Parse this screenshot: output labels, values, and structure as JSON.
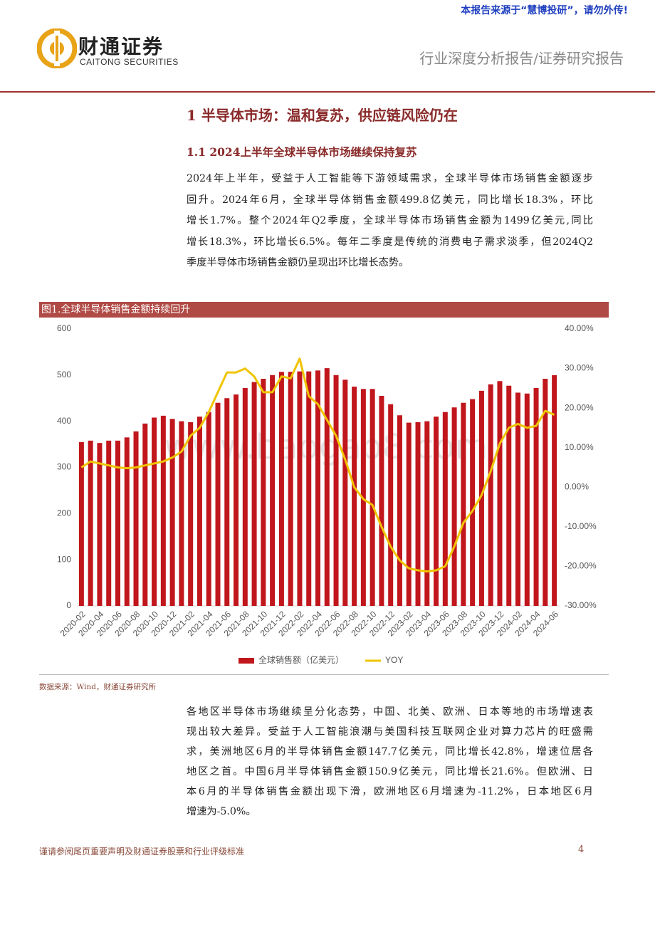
{
  "header": {
    "notice": "本报告来源于“慧博投研”，请勿外传!",
    "brand": "财通证券",
    "brand_en": "CAITONG SECURITIES",
    "report_type": "行业深度分析报告/证券研究报告"
  },
  "section_title": "1 半导体市场：温和复苏，供应链风险仍在",
  "subsection_title": "1.1 2024上半年全球半导体市场继续保持复苏",
  "paragraph_1": [
    "2024年上半年，受益于人工智能等下游领域需求，全球半导体市场销售金额逐步",
    "回升。2024年6月，全球半导体销售金额499.8亿美元，同比增长18.3%，环比",
    "增长1.7%。整个2024年Q2季度，全球半导体市场销售金额为1499亿美元,同比",
    "增长18.3%，环比增长6.5%。每年二季度是传统的消费电子需求淡季，但2024Q2",
    "季度半导体市场销售金额仍呈现出环比增长态势。"
  ],
  "figure_title": "图1.全球半导体销售金额持续回升",
  "watermark": "www.baogao8.com",
  "chart_data": {
    "type": "bar",
    "categories": [
      "2020-02",
      null,
      "2020-04",
      null,
      "2020-06",
      null,
      "2020-08",
      null,
      "2020-10",
      null,
      "2020-12",
      null,
      "2021-02",
      null,
      "2021-04",
      null,
      "2021-06",
      null,
      "2021-08",
      null,
      "2021-10",
      null,
      "2021-12",
      null,
      "2022-02",
      null,
      "2022-04",
      null,
      "2022-06",
      null,
      "2022-08",
      null,
      "2022-10",
      null,
      "2022-12",
      null,
      "2023-02",
      null,
      "2023-04",
      null,
      "2023-06",
      null,
      "2023-08",
      null,
      "2023-10",
      null,
      "2023-12",
      null,
      "2024-02",
      null,
      "2024-04",
      null,
      "2024-06"
    ],
    "series": [
      {
        "name": "全球销售额（亿美元）",
        "color": "#c0161c",
        "values": [
          355,
          358,
          353,
          358,
          358,
          365,
          378,
          395,
          408,
          412,
          405,
          400,
          398,
          410,
          420,
          440,
          450,
          458,
          472,
          485,
          492,
          500,
          507,
          507,
          508,
          508,
          510,
          515,
          500,
          490,
          475,
          470,
          470,
          455,
          437,
          413,
          397,
          398,
          400,
          410,
          420,
          430,
          440,
          448,
          466,
          480,
          487,
          477,
          462,
          460,
          472,
          492,
          499.8
        ]
      },
      {
        "name": "YOY",
        "type": "line",
        "axis": "y2",
        "color": "#f0c400",
        "values": [
          5,
          6.5,
          6,
          5.5,
          5,
          4.8,
          5,
          5.5,
          6,
          6.5,
          7.5,
          9,
          13,
          15,
          19,
          24,
          29,
          29,
          30,
          28,
          24,
          24,
          28,
          27.5,
          32.5,
          23,
          21,
          17,
          13,
          7,
          0,
          -3,
          -4.5,
          -10,
          -15,
          -18.5,
          -20.5,
          -21,
          -21.3,
          -21,
          -20,
          -15,
          -9,
          -6,
          -2,
          4,
          11,
          15,
          16,
          15,
          15.5,
          19.3,
          18.3
        ]
      }
    ],
    "ylim": [
      0,
      600
    ],
    "yticks": [
      0,
      100,
      200,
      300,
      400,
      500,
      600
    ],
    "y2lim": [
      -30,
      40
    ],
    "y2ticks": [
      {
        "value": -30,
        "label": "-30.00%"
      },
      {
        "value": -20,
        "label": "-20.00%"
      },
      {
        "value": -10,
        "label": "-10.00%"
      },
      {
        "value": 0,
        "label": "0.00%"
      },
      {
        "value": 10,
        "label": "10.00%"
      },
      {
        "value": 20,
        "label": "20.00%"
      },
      {
        "value": 30,
        "label": "30.00%"
      },
      {
        "value": 40,
        "label": "40.00%"
      }
    ],
    "legend": "bottom",
    "grid": false
  },
  "source": "数据来源：Wind，财通证券研究所",
  "paragraph_2": [
    "各地区半导体市场继续呈分化态势，中国、北美、欧洲、日本等地的市场增速表",
    "现出较大差异。受益于人工智能浪潮与美国科技互联网企业对算力芯片的旺盛需",
    "求，美洲地区6月的半导体销售金额147.7亿美元，同比增长42.8%，增速位居各",
    "地区之首。中国6月半导体销售金额150.9亿美元，同比增长21.6%。但欧洲、日",
    "本6月的半导体销售金额出现下滑，欧洲地区6月增速为-11.2%，日本地区6月",
    "增速为-5.0%。"
  ],
  "footer": "谨请参阅尾页重要声明及财通证券股票和行业评级标准",
  "page_number": "4"
}
